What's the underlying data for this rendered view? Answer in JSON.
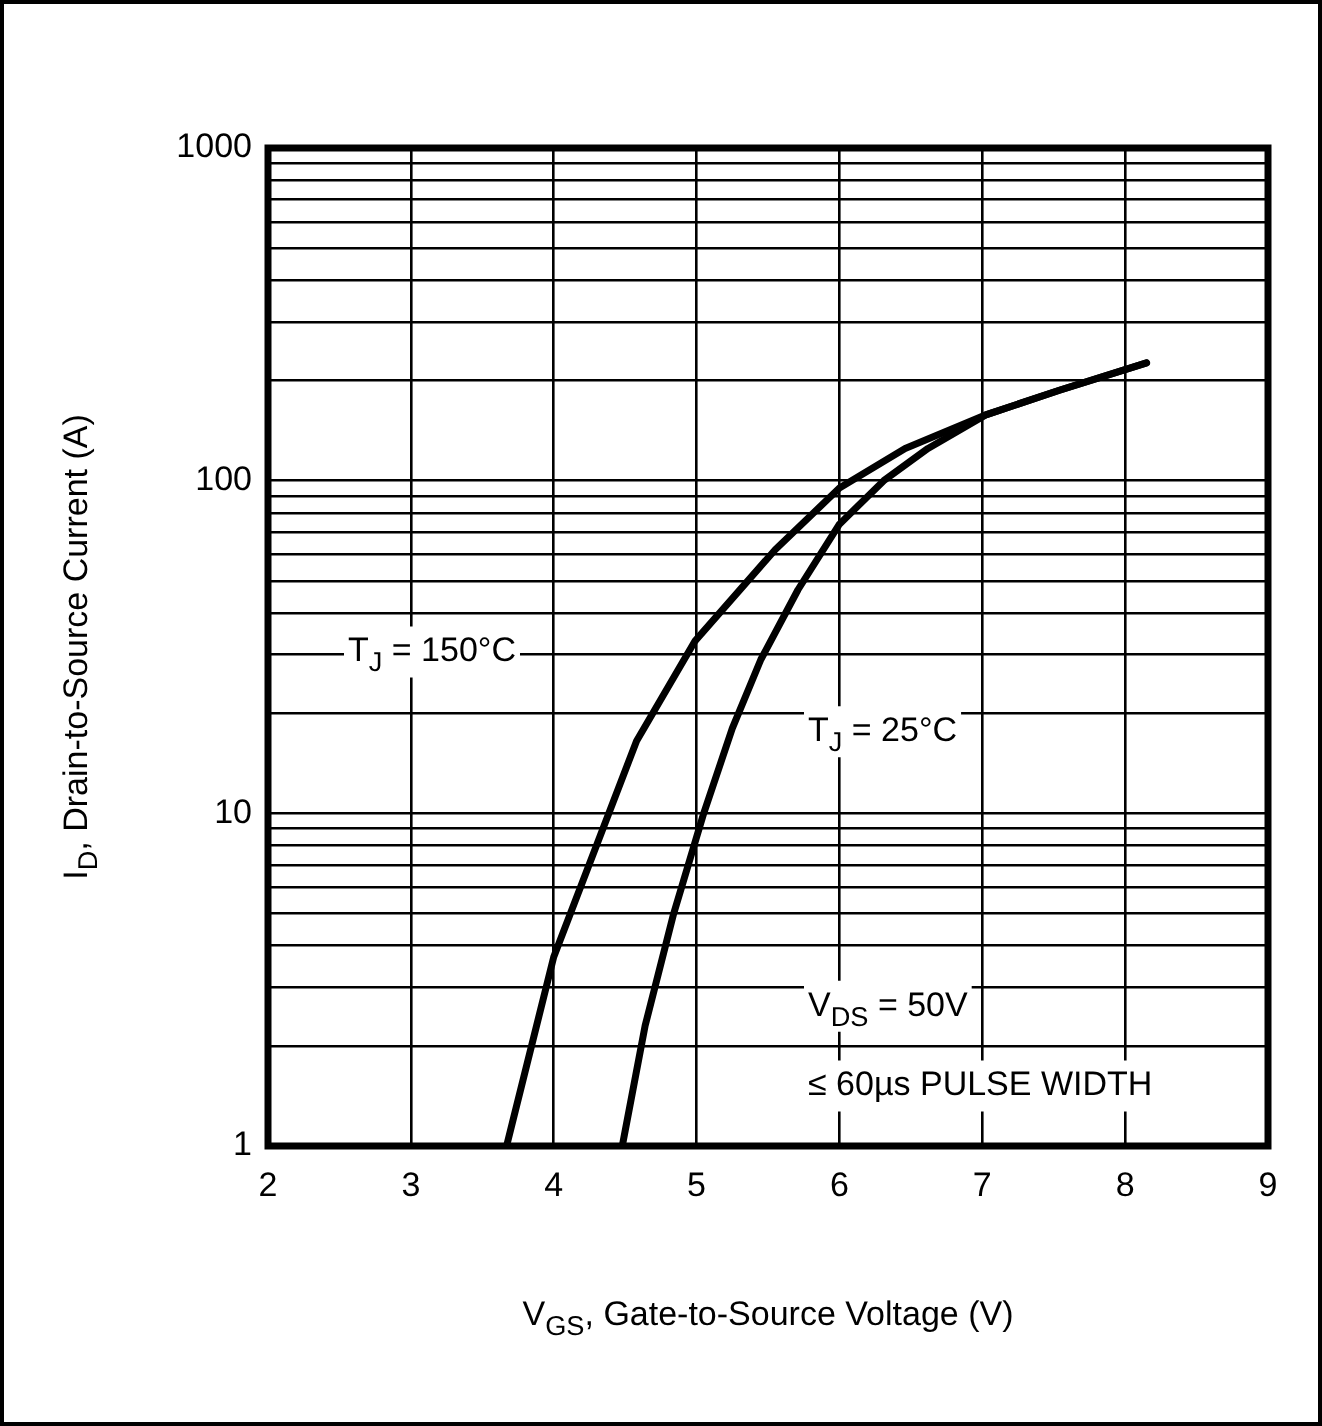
{
  "chart_data": {
    "type": "line",
    "xlabel": "V$_{GS}$, Gate-to-Source Voltage (V)",
    "ylabel": "I$_{D}$, Drain-to-Source Current (A)",
    "log": "y",
    "grid": true,
    "legend": false,
    "marker": "none",
    "line_style": "solid",
    "xlim": [
      2,
      9
    ],
    "xticks": [
      2,
      3,
      4,
      5,
      6,
      7,
      8,
      9
    ],
    "ylim": [
      1,
      1000
    ],
    "yticks": [
      1,
      {
        "value": 2,
        "label": null
      },
      {
        "value": 3,
        "label": null
      },
      {
        "value": 4,
        "label": null
      },
      {
        "value": 5,
        "label": null
      },
      {
        "value": 6,
        "label": null
      },
      {
        "value": 7,
        "label": null
      },
      {
        "value": 8,
        "label": null
      },
      {
        "value": 9,
        "label": null
      },
      10,
      {
        "value": 20,
        "label": null
      },
      {
        "value": 30,
        "label": null
      },
      {
        "value": 40,
        "label": null
      },
      {
        "value": 50,
        "label": null
      },
      {
        "value": 60,
        "label": null
      },
      {
        "value": 70,
        "label": null
      },
      {
        "value": 80,
        "label": null
      },
      {
        "value": 90,
        "label": null
      },
      100,
      {
        "value": 200,
        "label": null
      },
      {
        "value": 300,
        "label": null
      },
      {
        "value": 400,
        "label": null
      },
      {
        "value": 500,
        "label": null
      },
      {
        "value": 600,
        "label": null
      },
      {
        "value": 700,
        "label": null
      },
      {
        "value": 800,
        "label": null
      },
      {
        "value": 900,
        "label": null
      },
      1000
    ],
    "series": [
      {
        "color": "#000000",
        "x": [
          3.67,
          4.0,
          4.58,
          4.99,
          5.55,
          6.0,
          6.46,
          7.03,
          7.54,
          8.15
        ],
        "values": [
          1,
          3.7,
          16.5,
          33,
          62,
          95,
          125,
          158,
          187,
          226
        ]
      },
      {
        "color": "#000000",
        "x": [
          4.48,
          4.64,
          4.84,
          5.05,
          5.25,
          5.45,
          5.71,
          6.0,
          6.31,
          6.62,
          7.03,
          7.54,
          8.15
        ],
        "values": [
          1,
          2.3,
          5,
          10,
          18,
          29,
          47,
          74,
          100,
          125,
          158,
          187,
          226
        ]
      }
    ],
    "annotations": [
      "T$_{J}$ = 150°C",
      "T$_{J}$ = 25°C",
      "V$_{DS}$ = 50V",
      "≤ 60µs PULSE WIDTH"
    ]
  }
}
